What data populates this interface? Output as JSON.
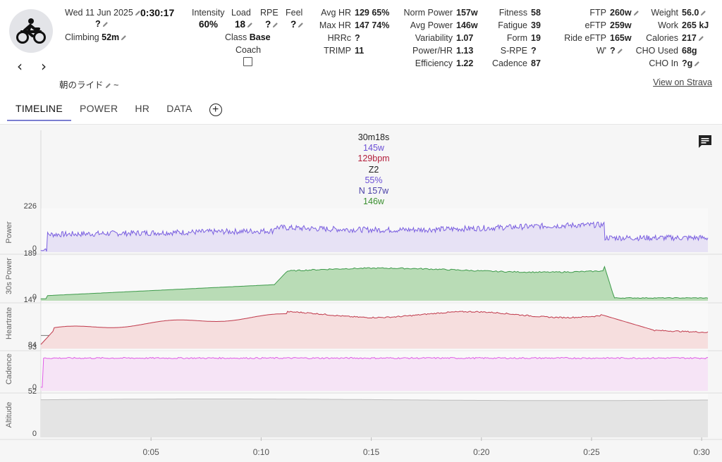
{
  "header": {
    "date": "Wed 11 Jun 2025",
    "duration": "0:30:17",
    "date_sub": "?",
    "climbing_label": "Climbing",
    "climbing_value": "52m",
    "title": "朝のライド",
    "title_suffix": "~",
    "intensity_label": "Intensity",
    "intensity_value": "60%",
    "load_label": "Load",
    "load_value": "18",
    "rpe_label": "RPE",
    "rpe_value": "?",
    "feel_label": "Feel",
    "feel_value": "?",
    "class_label": "Class",
    "class_value": "Base",
    "coach_label": "Coach",
    "strava_link": "View on Strava"
  },
  "stats": {
    "hr_block": [
      {
        "label": "Avg HR",
        "value": "129 65%"
      },
      {
        "label": "Max HR",
        "value": "147 74%"
      },
      {
        "label": "HRRc",
        "value": "?"
      },
      {
        "label": "TRIMP",
        "value": "11"
      }
    ],
    "power_block": [
      {
        "label": "Norm Power",
        "value": "157w"
      },
      {
        "label": "Avg Power",
        "value": "146w"
      },
      {
        "label": "Variability",
        "value": "1.07"
      },
      {
        "label": "Power/HR",
        "value": "1.13"
      },
      {
        "label": "Efficiency",
        "value": "1.22"
      }
    ],
    "fitness_block": [
      {
        "label": "Fitness",
        "value": "58"
      },
      {
        "label": "Fatigue",
        "value": "39"
      },
      {
        "label": "Form",
        "value": "19"
      },
      {
        "label": "S-RPE",
        "value": "?"
      },
      {
        "label": "Cadence",
        "value": "87"
      }
    ],
    "ftp_block": [
      {
        "label": "FTP",
        "value": "260w"
      },
      {
        "label": "eFTP",
        "value": "259w"
      },
      {
        "label": "Ride eFTP",
        "value": "165w"
      },
      {
        "label": "W'",
        "value": "?"
      }
    ],
    "weight_block": [
      {
        "label": "Weight",
        "value": "56.0"
      },
      {
        "label": "Work",
        "value": "265 kJ"
      },
      {
        "label": "Calories",
        "value": "217"
      },
      {
        "label": "CHO Used",
        "value": "68g"
      },
      {
        "label": "CHO In",
        "value": "?g"
      }
    ]
  },
  "tabs": [
    {
      "label": "TIMELINE",
      "active": true
    },
    {
      "label": "POWER",
      "active": false
    },
    {
      "label": "HR",
      "active": false
    },
    {
      "label": "DATA",
      "active": false
    }
  ],
  "tooltip": {
    "time": "30m18s",
    "power": "145w",
    "hr": "129bpm",
    "zone": "Z2",
    "pct": "55%",
    "norm_power": "N 157w",
    "avg_power": "146w",
    "colors": {
      "time": "#222222",
      "power": "#6b4fd6",
      "hr": "#b3203c",
      "zone": "#222222",
      "pct": "#6b4fd6",
      "norm_power": "#4a3fa8",
      "avg_power": "#3a8f2f"
    }
  },
  "tracks": [
    {
      "name": "Power",
      "max": "226",
      "min": "0",
      "color": "#7a5fe0",
      "fill": "#e7e2f5"
    },
    {
      "name": "30s Power",
      "max": "189",
      "min": "0",
      "color": "#3d9a4a",
      "fill": "#b9dcb6"
    },
    {
      "name": "Heartrate",
      "max": "147",
      "min": "84",
      "color": "#c0394b",
      "fill": "#f6dede"
    },
    {
      "name": "Cadence",
      "max": "93",
      "min": "0",
      "color": "#e05ce6",
      "fill": "#f6e4f6"
    },
    {
      "name": "Altitude",
      "max": "52",
      "min": "0",
      "color": "#bdbdbd",
      "fill": "#e4e4e4"
    }
  ],
  "x_ticks": [
    "0:05",
    "0:10",
    "0:15",
    "0:20",
    "0:25",
    "0:30"
  ],
  "icons": {
    "activity": "cycling-icon",
    "prev": "chevron-left-icon",
    "next": "chevron-right-icon",
    "edit": "pencil-icon",
    "add_tab": "plus-circle-icon",
    "comment": "comment-icon"
  }
}
